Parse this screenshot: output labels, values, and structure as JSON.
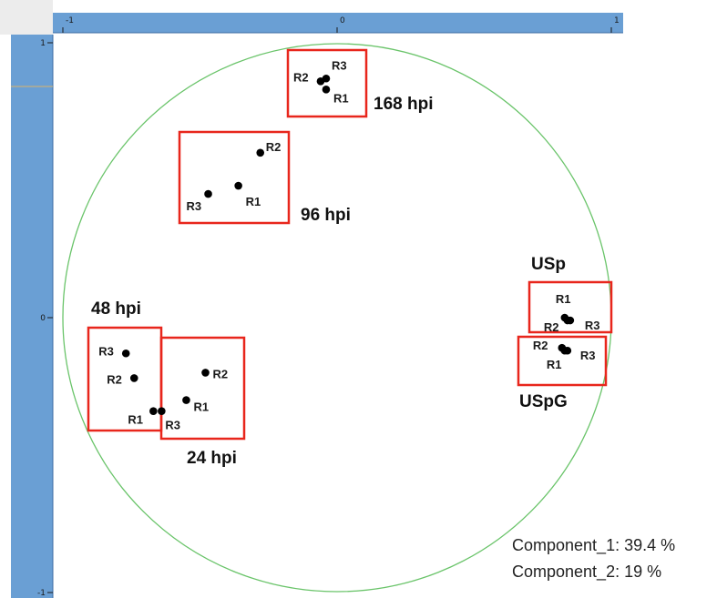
{
  "chart_data": {
    "type": "scatter",
    "xlim": [
      -1,
      1
    ],
    "ylim": [
      -1,
      1
    ],
    "x_ticks": [
      "-1",
      "0",
      "1"
    ],
    "y_ticks": [
      "1",
      "0",
      "-1"
    ],
    "grid": false,
    "correlation_circle": true,
    "colors": {
      "circle": "#6ac46a",
      "box": "#e8261c",
      "point": "#000000",
      "axis_band": "#6a9fd4"
    },
    "groups": [
      {
        "name": "168 hpi",
        "points": [
          {
            "label": "R1",
            "x": -0.04,
            "y": 0.83
          },
          {
            "label": "R2",
            "x": -0.06,
            "y": 0.86
          },
          {
            "label": "R3",
            "x": -0.04,
            "y": 0.87
          }
        ]
      },
      {
        "name": "96 hpi",
        "points": [
          {
            "label": "R1",
            "x": -0.36,
            "y": 0.48
          },
          {
            "label": "R2",
            "x": -0.28,
            "y": 0.6
          },
          {
            "label": "R3",
            "x": -0.47,
            "y": 0.45
          }
        ]
      },
      {
        "name": "48 hpi",
        "points": [
          {
            "label": "R1",
            "x": -0.67,
            "y": -0.34
          },
          {
            "label": "R2",
            "x": -0.74,
            "y": -0.22
          },
          {
            "label": "R3",
            "x": -0.77,
            "y": -0.13
          }
        ]
      },
      {
        "name": "24 hpi",
        "points": [
          {
            "label": "R1",
            "x": -0.55,
            "y": -0.3
          },
          {
            "label": "R2",
            "x": -0.48,
            "y": -0.2
          },
          {
            "label": "R3",
            "x": -0.64,
            "y": -0.34
          }
        ]
      },
      {
        "name": "USp",
        "points": [
          {
            "label": "R1",
            "x": 0.83,
            "y": 0.0
          },
          {
            "label": "R2",
            "x": 0.84,
            "y": -0.01
          },
          {
            "label": "R3",
            "x": 0.85,
            "y": -0.01
          }
        ]
      },
      {
        "name": "USpG",
        "points": [
          {
            "label": "R1",
            "x": 0.83,
            "y": -0.12
          },
          {
            "label": "R2",
            "x": 0.82,
            "y": -0.11
          },
          {
            "label": "R3",
            "x": 0.84,
            "y": -0.12
          }
        ]
      }
    ],
    "annotations": [
      "Component_1: 39.4 %",
      "Component_2: 19 %"
    ]
  },
  "footer": {
    "component_1": "Component_1: 39.4 %",
    "component_2": "Component_2: 19 %"
  }
}
